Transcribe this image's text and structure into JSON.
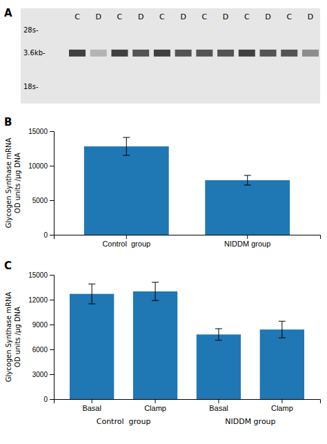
{
  "chart_data": [
    {
      "type": "blot",
      "title": "A",
      "categories": [
        "C",
        "D",
        "C",
        "D",
        "C",
        "D",
        "C",
        "D",
        "C",
        "D",
        "C",
        "D"
      ],
      "annotations": [
        "28s-",
        "3.6kb-",
        "18s-"
      ],
      "colors": [
        "#404040",
        "#b3b3b3",
        "#404040",
        "#535353",
        "#404040",
        "#535353",
        "#535353",
        "#535353",
        "#404040",
        "#535353",
        "#535353",
        "#8c8c8c"
      ]
    },
    {
      "type": "bar",
      "title": "B",
      "categories": [
        "Control  group",
        "NIDDM group"
      ],
      "values": [
        12800,
        7900
      ],
      "errors": [
        1300,
        700
      ],
      "ylim": [
        0,
        15000
      ],
      "yticks": [
        0,
        5000,
        10000,
        15000
      ],
      "ylabel": "Glycogen Synthase mRNA\nOD units /µg DNA"
    },
    {
      "type": "bar",
      "title": "C",
      "categories": [
        "Basal",
        "Clamp",
        "Basal",
        "Clamp"
      ],
      "annotations": [
        "Control  group",
        "NIDDM group"
      ],
      "values": [
        12700,
        13000,
        7800,
        8400
      ],
      "errors": [
        1200,
        1100,
        700,
        1000
      ],
      "ylim": [
        0,
        15000
      ],
      "yticks": [
        0,
        3000,
        6000,
        9000,
        12000,
        15000
      ],
      "ylabel": "Glycogen Synthase mRNA\nOD units /µg DNA"
    }
  ]
}
